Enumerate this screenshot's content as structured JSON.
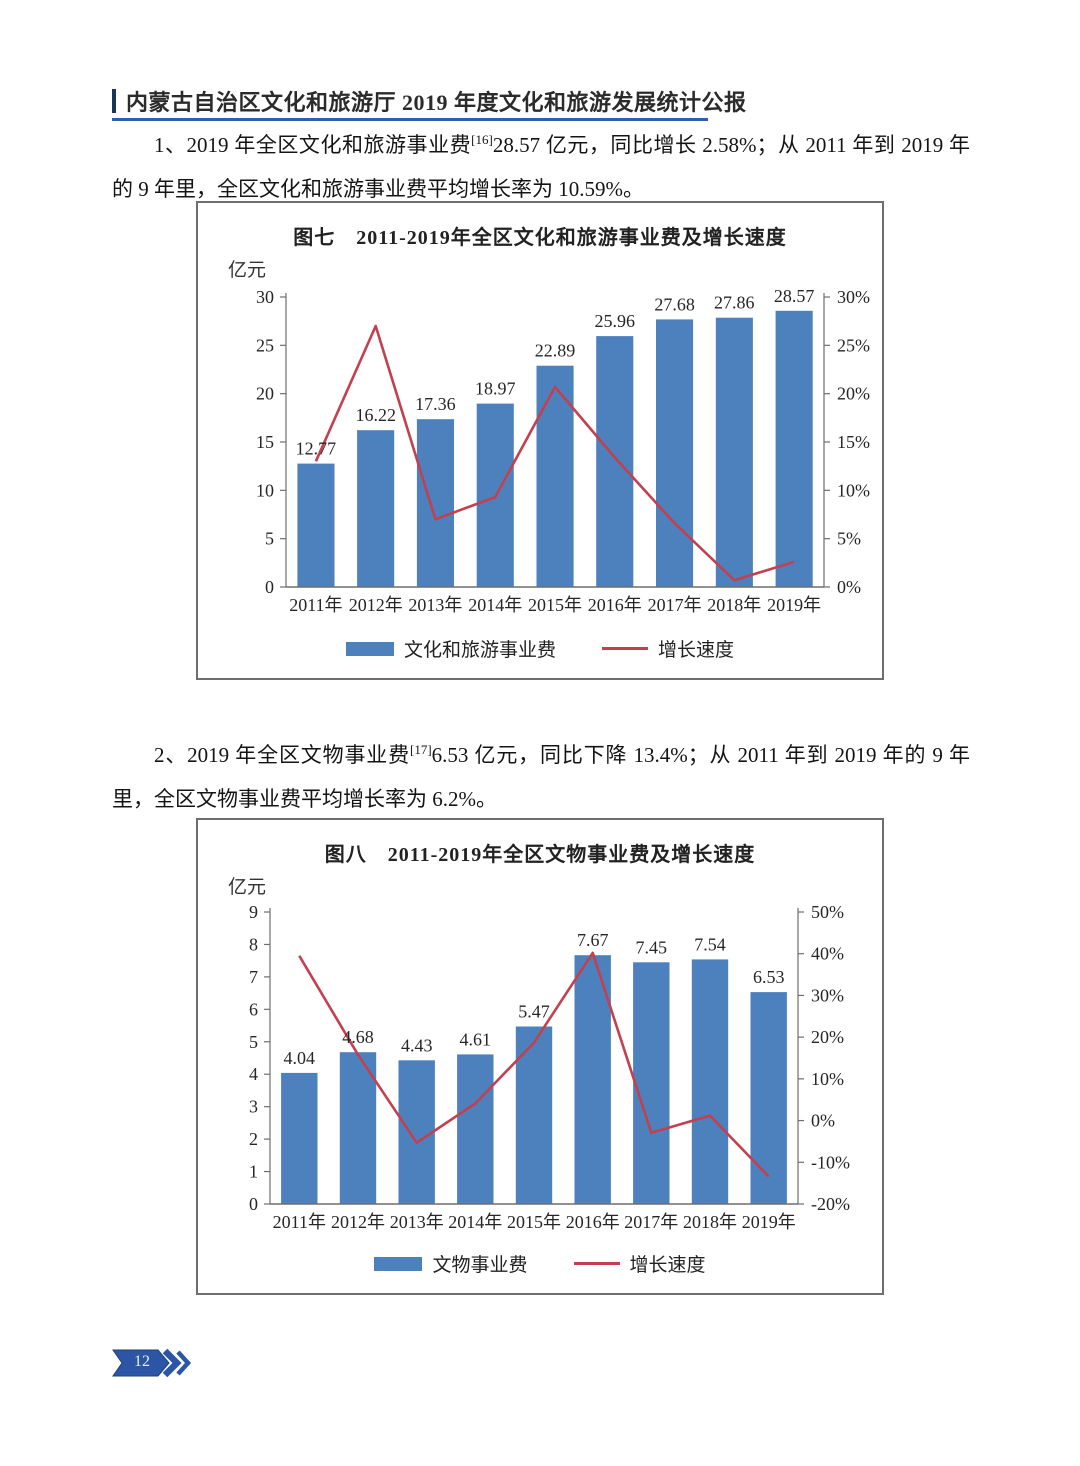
{
  "header": {
    "title": "内蒙古自治区文化和旅游厅 2019 年度文化和旅游发展统计公报"
  },
  "paragraphs": {
    "p1": {
      "lead": "1、2019 年全区文化和旅游事业费",
      "footnote_ref": "[16]",
      "body": "28.57 亿元，同比增长 2.58%；从 2011 年到 2019 年的 9 年里，全区文化和旅游事业费平均增长率为 10.59%。"
    },
    "p2": {
      "lead": "2、2019 年全区文物事业费",
      "footnote_ref": "[17]",
      "body": "6.53 亿元，同比下降 13.4%；从 2011 年到 2019 年的 9 年里，全区文物事业费平均增长率为 6.2%。"
    }
  },
  "page_footer": {
    "page_number": "12"
  },
  "colors": {
    "bar_blue": "#4d81bd",
    "line_red": "#c2404f",
    "header_blue": "#2e5fa8",
    "badge_blue": "#2d55a5",
    "axis_gray": "#6e6e6e"
  },
  "chart_data": [
    {
      "type": "bar",
      "combo": "bar+line",
      "title": "图七　2011-2019年全区文化和旅游事业费及增长速度",
      "unit_label": "亿元",
      "categories": [
        "2011年",
        "2012年",
        "2013年",
        "2014年",
        "2015年",
        "2016年",
        "2017年",
        "2018年",
        "2019年"
      ],
      "series": [
        {
          "name": "文化和旅游事业费",
          "type": "bar",
          "axis": "left",
          "values": [
            12.77,
            16.22,
            17.36,
            18.97,
            22.89,
            25.96,
            27.68,
            27.86,
            28.57
          ]
        },
        {
          "name": "增长速度",
          "type": "line",
          "axis": "right",
          "values": [
            13.0,
            27.0,
            7.0,
            9.3,
            20.7,
            13.4,
            6.6,
            0.7,
            2.6
          ]
        }
      ],
      "left_axis": {
        "min": 0,
        "max": 30,
        "step": 5,
        "suffix": ""
      },
      "right_axis": {
        "min": 0,
        "max": 30,
        "step": 5,
        "suffix": "%"
      },
      "grid": false,
      "legend_position": "bottom",
      "data_labels": true
    },
    {
      "type": "bar",
      "combo": "bar+line",
      "title": "图八　2011-2019年全区文物事业费及增长速度",
      "unit_label": "亿元",
      "categories": [
        "2011年",
        "2012年",
        "2013年",
        "2014年",
        "2015年",
        "2016年",
        "2017年",
        "2018年",
        "2019年"
      ],
      "series": [
        {
          "name": "文物事业费",
          "type": "bar",
          "axis": "left",
          "values": [
            4.04,
            4.68,
            4.43,
            4.61,
            5.47,
            7.67,
            7.45,
            7.54,
            6.53
          ]
        },
        {
          "name": "增长速度",
          "type": "line",
          "axis": "right",
          "values": [
            39.5,
            15.8,
            -5.3,
            4.1,
            18.7,
            40.2,
            -2.9,
            1.2,
            -13.4
          ]
        }
      ],
      "left_axis": {
        "min": 0,
        "max": 9,
        "step": 1,
        "suffix": ""
      },
      "right_axis": {
        "min": -20,
        "max": 50,
        "step": 10,
        "suffix": "%"
      },
      "grid": false,
      "legend_position": "bottom",
      "data_labels": true
    }
  ]
}
